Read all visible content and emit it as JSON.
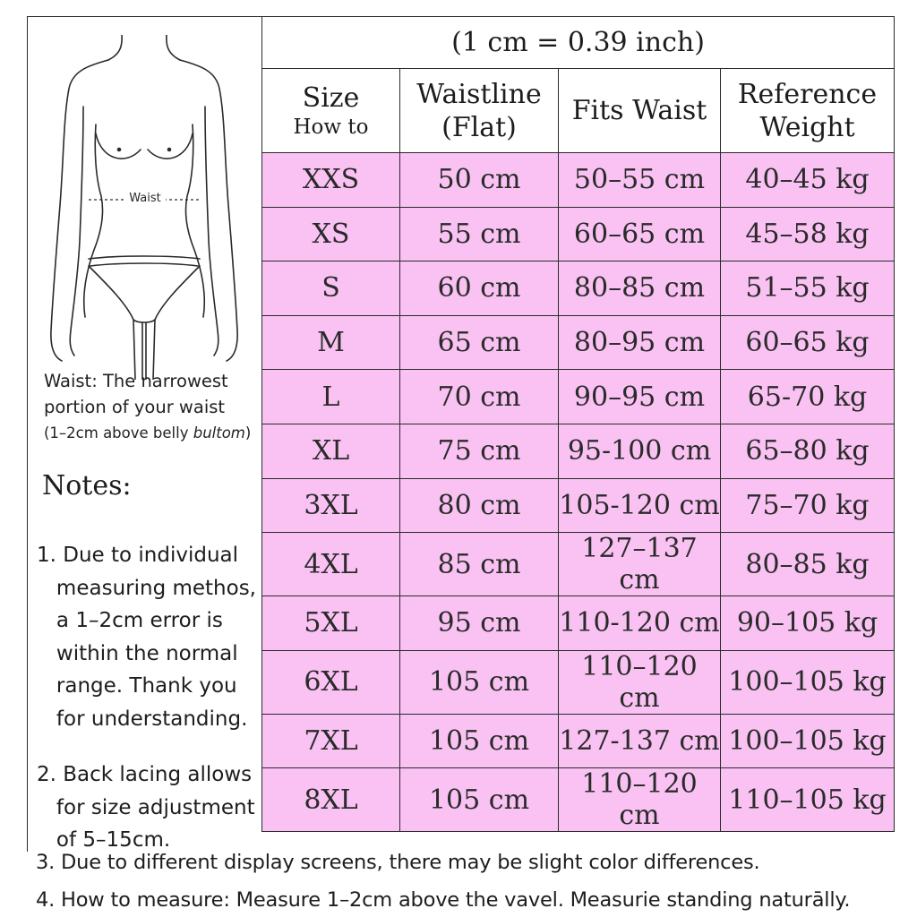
{
  "table": {
    "caption": "(1 cm = 0.39 inch)",
    "headers": {
      "size": "Size",
      "size_sub": "How to",
      "waistline_1": "Waistline",
      "waistline_2": "(Flat)",
      "fits_waist": "Fits Waist",
      "weight_1": "Reference",
      "weight_2": "Weight"
    },
    "rows": [
      {
        "size": "XXS",
        "waistline": "50 cm",
        "fits_waist": "50–55 cm",
        "weight": "40–45 kg"
      },
      {
        "size": "XS",
        "waistline": "55 cm",
        "fits_waist": "60–65 cm",
        "weight": "45–58 kg"
      },
      {
        "size": "S",
        "waistline": "60 cm",
        "fits_waist": "80–85 cm",
        "weight": "51–55 kg"
      },
      {
        "size": "M",
        "waistline": "65 cm",
        "fits_waist": "80–95 cm",
        "weight": "60–65 kg"
      },
      {
        "size": "L",
        "waistline": "70 cm",
        "fits_waist": "90–95 cm",
        "weight": "65-70 kg"
      },
      {
        "size": "XL",
        "waistline": "75 cm",
        "fits_waist": "95-100 cm",
        "weight": "65–80 kg"
      },
      {
        "size": "3XL",
        "waistline": "80 cm",
        "fits_waist": "105-120 cm",
        "weight": "75–70 kg"
      },
      {
        "size": "4XL",
        "waistline": "85 cm",
        "fits_waist": "127–137 cm",
        "weight": "80–85 kg"
      },
      {
        "size": "5XL",
        "waistline": "95 cm",
        "fits_waist": "110-120 cm",
        "weight": "90–105 kg"
      },
      {
        "size": "6XL",
        "waistline": "105 cm",
        "fits_waist": "110–120 cm",
        "weight": "100–105 kg"
      },
      {
        "size": "7XL",
        "waistline": "105 cm",
        "fits_waist": "127-137 cm",
        "weight": "100–105 kg"
      },
      {
        "size": "8XL",
        "waistline": "105 cm",
        "fits_waist": "110–120 cm",
        "weight": "110–105 kg"
      }
    ]
  },
  "figure": {
    "waist_label": "Waist"
  },
  "waist_caption": {
    "line1": "Waist: The narrowest",
    "line2": "portion of your waist",
    "line3_prefix": "(1–2cm above belly ",
    "line3_italic": "bultom",
    "line3_suffix": ")"
  },
  "notes": {
    "heading": "Notes:",
    "note1": "1. Due to individual\n   measuring methos,\n   a 1–2cm error is\n   within the normal\n   range. Thank you\n   for understanding.",
    "note2": "2. Back lacing allows\n   for size adjustment\n   of 5–15cm.",
    "note3": "3. Due to different display screens, there may be slight color differences.",
    "note4": "4. How to measure: Measure 1–2cm  above the vavel. Measurie standing naturālly."
  },
  "colors": {
    "row_fill": "#f9c2f3",
    "border": "#2a2a2a"
  }
}
